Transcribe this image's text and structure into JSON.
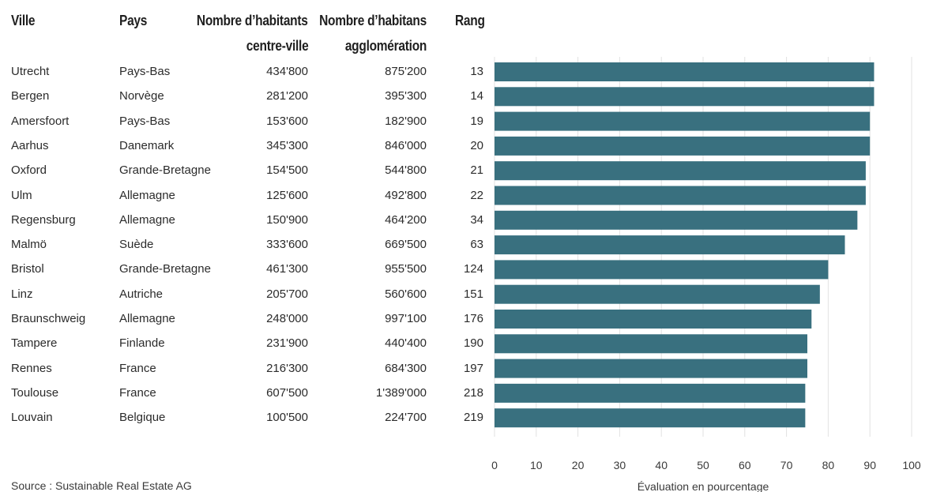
{
  "table": {
    "headers": {
      "ville": "Ville",
      "pays": "Pays",
      "centre_line1": "Nombre d’habitants",
      "centre_line2": "centre-ville",
      "agglo_line1": "Nombre d’habitans",
      "agglo_line2": "agglomération",
      "rang": "Rang"
    },
    "rows": [
      {
        "ville": "Utrecht",
        "pays": "Pays-Bas",
        "centre": "434'800",
        "agglo": "875'200",
        "rang": "13"
      },
      {
        "ville": "Bergen",
        "pays": "Norvège",
        "centre": "281'200",
        "agglo": "395'300",
        "rang": "14"
      },
      {
        "ville": "Amersfoort",
        "pays": "Pays-Bas",
        "centre": "153'600",
        "agglo": "182'900",
        "rang": "19"
      },
      {
        "ville": "Aarhus",
        "pays": "Danemark",
        "centre": "345'300",
        "agglo": "846'000",
        "rang": "20"
      },
      {
        "ville": "Oxford",
        "pays": "Grande-Bretagne",
        "centre": "154'500",
        "agglo": "544'800",
        "rang": "21"
      },
      {
        "ville": "Ulm",
        "pays": "Allemagne",
        "centre": "125'600",
        "agglo": "492'800",
        "rang": "22"
      },
      {
        "ville": "Regensburg",
        "pays": "Allemagne",
        "centre": "150'900",
        "agglo": "464'200",
        "rang": "34"
      },
      {
        "ville": "Malmö",
        "pays": "Suède",
        "centre": "333'600",
        "agglo": "669'500",
        "rang": "63"
      },
      {
        "ville": "Bristol",
        "pays": "Grande-Bretagne",
        "centre": "461'300",
        "agglo": "955'500",
        "rang": "124"
      },
      {
        "ville": "Linz",
        "pays": "Autriche",
        "centre": "205'700",
        "agglo": "560'600",
        "rang": "151"
      },
      {
        "ville": "Braunschweig",
        "pays": "Allemagne",
        "centre": "248'000",
        "agglo": "997'100",
        "rang": "176"
      },
      {
        "ville": "Tampere",
        "pays": "Finlande",
        "centre": "231'900",
        "agglo": "440'400",
        "rang": "190"
      },
      {
        "ville": "Rennes",
        "pays": "France",
        "centre": "216'300",
        "agglo": "684'300",
        "rang": "197"
      },
      {
        "ville": "Toulouse",
        "pays": "France",
        "centre": "607'500",
        "agglo": "1'389'000",
        "rang": "218"
      },
      {
        "ville": "Louvain",
        "pays": "Belgique",
        "centre": "100'500",
        "agglo": "224'700",
        "rang": "219"
      }
    ]
  },
  "chart_data": {
    "type": "bar",
    "orientation": "horizontal",
    "categories": [
      "Utrecht",
      "Bergen",
      "Amersfoort",
      "Aarhus",
      "Oxford",
      "Ulm",
      "Regensburg",
      "Malmö",
      "Bristol",
      "Linz",
      "Braunschweig",
      "Tampere",
      "Rennes",
      "Toulouse",
      "Louvain"
    ],
    "values": [
      91,
      91,
      90,
      90,
      89,
      89,
      87,
      84,
      80,
      78,
      76,
      75,
      75,
      74.5,
      74.5
    ],
    "xlabel": "Évaluation en pourcentage",
    "xlim": [
      0,
      100
    ],
    "xticks": [
      "0",
      "10",
      "20",
      "30",
      "40",
      "50",
      "60",
      "70",
      "80",
      "90",
      "100"
    ],
    "grid": "vertical",
    "bar_color": "#39707f"
  },
  "source": "Source : Sustainable Real Estate AG"
}
